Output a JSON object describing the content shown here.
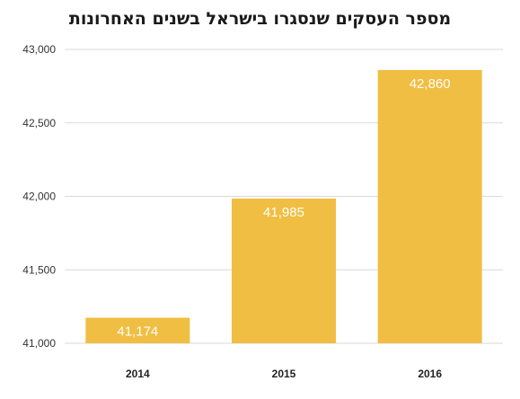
{
  "chart_data": {
    "type": "bar",
    "title": "מספר העסקים שנסגרו בישראל בשנים האחרונות",
    "categories": [
      "2014",
      "2015",
      "2016"
    ],
    "values": [
      41174,
      41985,
      42860
    ],
    "value_labels": [
      "41,174",
      "41,985",
      "42,860"
    ],
    "xlabel": "",
    "ylabel": "",
    "ylim": [
      41000,
      43000
    ],
    "yticks": [
      41000,
      41500,
      42000,
      42500,
      43000
    ],
    "ytick_labels": [
      "41,000",
      "41,500",
      "42,000",
      "42,500",
      "43,000"
    ],
    "grid": true,
    "legend": "none",
    "bar_color": "#F0BE42",
    "grid_color": "#D9D9D9"
  }
}
